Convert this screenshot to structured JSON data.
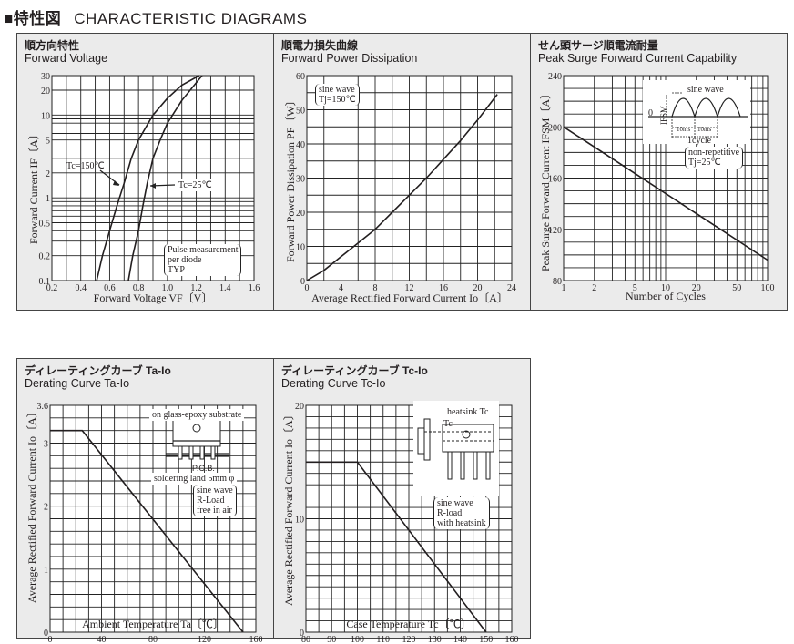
{
  "header": {
    "jp": "■特性図",
    "en": "CHARACTERISTIC  DIAGRAMS"
  },
  "chart_data": [
    {
      "type": "line",
      "title_jp": "順方向特性",
      "title": "Forward Voltage",
      "xlabel": "Forward Voltage VF〔V〕",
      "ylabel": "Forward Current IF〔A〕",
      "xscale": "linear",
      "yscale": "log",
      "xlim": [
        0.2,
        1.6
      ],
      "ylim": [
        0.1,
        30
      ],
      "xticks": [
        "0.2",
        "0.4",
        "0.6",
        "0.8",
        "1.0",
        "1.2",
        "1.4",
        "1.6"
      ],
      "yticks": [
        "0.1",
        "0.2",
        "0.5",
        "1",
        "2",
        "5",
        "10",
        "20",
        "30"
      ],
      "series": [
        {
          "name": "Tc=150℃",
          "points": [
            [
              0.51,
              0.1
            ],
            [
              0.55,
              0.2
            ],
            [
              0.6,
              0.4
            ],
            [
              0.65,
              0.8
            ],
            [
              0.7,
              1.5
            ],
            [
              0.75,
              3
            ],
            [
              0.8,
              5
            ],
            [
              0.9,
              10
            ],
            [
              1.0,
              16
            ],
            [
              1.1,
              23
            ],
            [
              1.22,
              30
            ]
          ]
        },
        {
          "name": "Tc=25℃",
          "points": [
            [
              0.73,
              0.1
            ],
            [
              0.76,
              0.2
            ],
            [
              0.8,
              0.4
            ],
            [
              0.83,
              0.8
            ],
            [
              0.86,
              1.5
            ],
            [
              0.9,
              3
            ],
            [
              0.95,
              5
            ],
            [
              1.0,
              8
            ],
            [
              1.1,
              15
            ],
            [
              1.24,
              30
            ]
          ]
        }
      ],
      "notes": [
        "Pulse measurement",
        "per diode",
        "TYP"
      ]
    },
    {
      "type": "line",
      "title_jp": "順電力損失曲線",
      "title": "Forward Power Dissipation",
      "xlabel": "Average Rectified Forward Current Io〔A〕",
      "ylabel": "Forward Power Dissipation PF〔W〕",
      "xscale": "linear",
      "yscale": "linear",
      "xlim": [
        0,
        24
      ],
      "ylim": [
        0,
        60
      ],
      "xticks": [
        "0",
        "4",
        "8",
        "12",
        "16",
        "20",
        "24"
      ],
      "yticks": [
        "0",
        "10",
        "20",
        "30",
        "40",
        "50",
        "60"
      ],
      "series": [
        {
          "name": "PF",
          "points": [
            [
              0,
              0
            ],
            [
              2,
              3
            ],
            [
              4,
              7
            ],
            [
              6,
              11
            ],
            [
              8,
              15
            ],
            [
              10,
              20
            ],
            [
              12,
              25
            ],
            [
              14,
              30
            ],
            [
              16,
              35.5
            ],
            [
              18,
              41
            ],
            [
              20,
              47
            ],
            [
              22.3,
              54.5
            ]
          ]
        }
      ],
      "notes": [
        "sine wave",
        "Tj=150℃"
      ]
    },
    {
      "type": "line",
      "title_jp": "せん頭サージ順電流耐量",
      "title": "Peak Surge Forward Current Capability",
      "xlabel": "Number of Cycles",
      "ylabel": "Peak Surge Forward Current IFSM〔A〕",
      "xscale": "log",
      "yscale": "linear",
      "xlim": [
        1,
        100
      ],
      "ylim": [
        80,
        240
      ],
      "xticks": [
        "1",
        "2",
        "5",
        "10",
        "20",
        "50",
        "100"
      ],
      "yticks": [
        "80",
        "120",
        "160",
        "200",
        "240"
      ],
      "series": [
        {
          "name": "IFSM",
          "points": [
            [
              1,
              200
            ],
            [
              100,
              96
            ]
          ]
        }
      ],
      "notes": [
        "non-repetitive",
        "Tj=25℃"
      ],
      "inset": {
        "title": "sine wave",
        "ylabel": "IFSM",
        "zero": "0",
        "half": "10ms",
        "cycle": "1cycle"
      }
    },
    {
      "type": "line",
      "title_jp": "ディレーティングカーブ Ta-Io",
      "title": "Derating Curve Ta-Io",
      "xlabel": "Ambient Temperature Ta〔℃〕",
      "ylabel": "Average Rectified Forward Current Io〔A〕",
      "xscale": "linear",
      "yscale": "linear",
      "xlim": [
        0,
        160
      ],
      "ylim": [
        0,
        3.6
      ],
      "xticks": [
        "0",
        "40",
        "80",
        "120",
        "160"
      ],
      "yticks": [
        "0",
        "1",
        "2",
        "3",
        "3.6"
      ],
      "series": [
        {
          "name": "Io",
          "points": [
            [
              0,
              3.2
            ],
            [
              25,
              3.2
            ],
            [
              150,
              0
            ]
          ]
        }
      ],
      "notes": [
        "sine wave",
        "R-Load",
        "free in air"
      ],
      "inset": {
        "substrate": "on glass-epoxy substrate",
        "pcb": "P.C.B.",
        "land": "soldering land 5mm φ"
      }
    },
    {
      "type": "line",
      "title_jp": "ディレーティングカーブ Tc-Io",
      "title": "Derating  Curve  Tc-Io",
      "xlabel": "Case Temperature Tc〔℃〕",
      "ylabel": "Average Rectified Forward Current Io〔A〕",
      "xscale": "linear",
      "yscale": "linear",
      "xlim": [
        80,
        160
      ],
      "ylim": [
        0,
        20
      ],
      "xticks": [
        "80",
        "90",
        "100",
        "110",
        "120",
        "130",
        "140",
        "150",
        "160"
      ],
      "yticks": [
        "0",
        "10",
        "20"
      ],
      "series": [
        {
          "name": "Io",
          "points": [
            [
              80,
              15
            ],
            [
              100,
              15
            ],
            [
              150,
              0
            ]
          ]
        }
      ],
      "notes": [
        "sine wave",
        "R-load",
        "with heatsink"
      ],
      "inset": {
        "heatsink": "heatsink Tc",
        "tc": "Tc"
      }
    }
  ]
}
